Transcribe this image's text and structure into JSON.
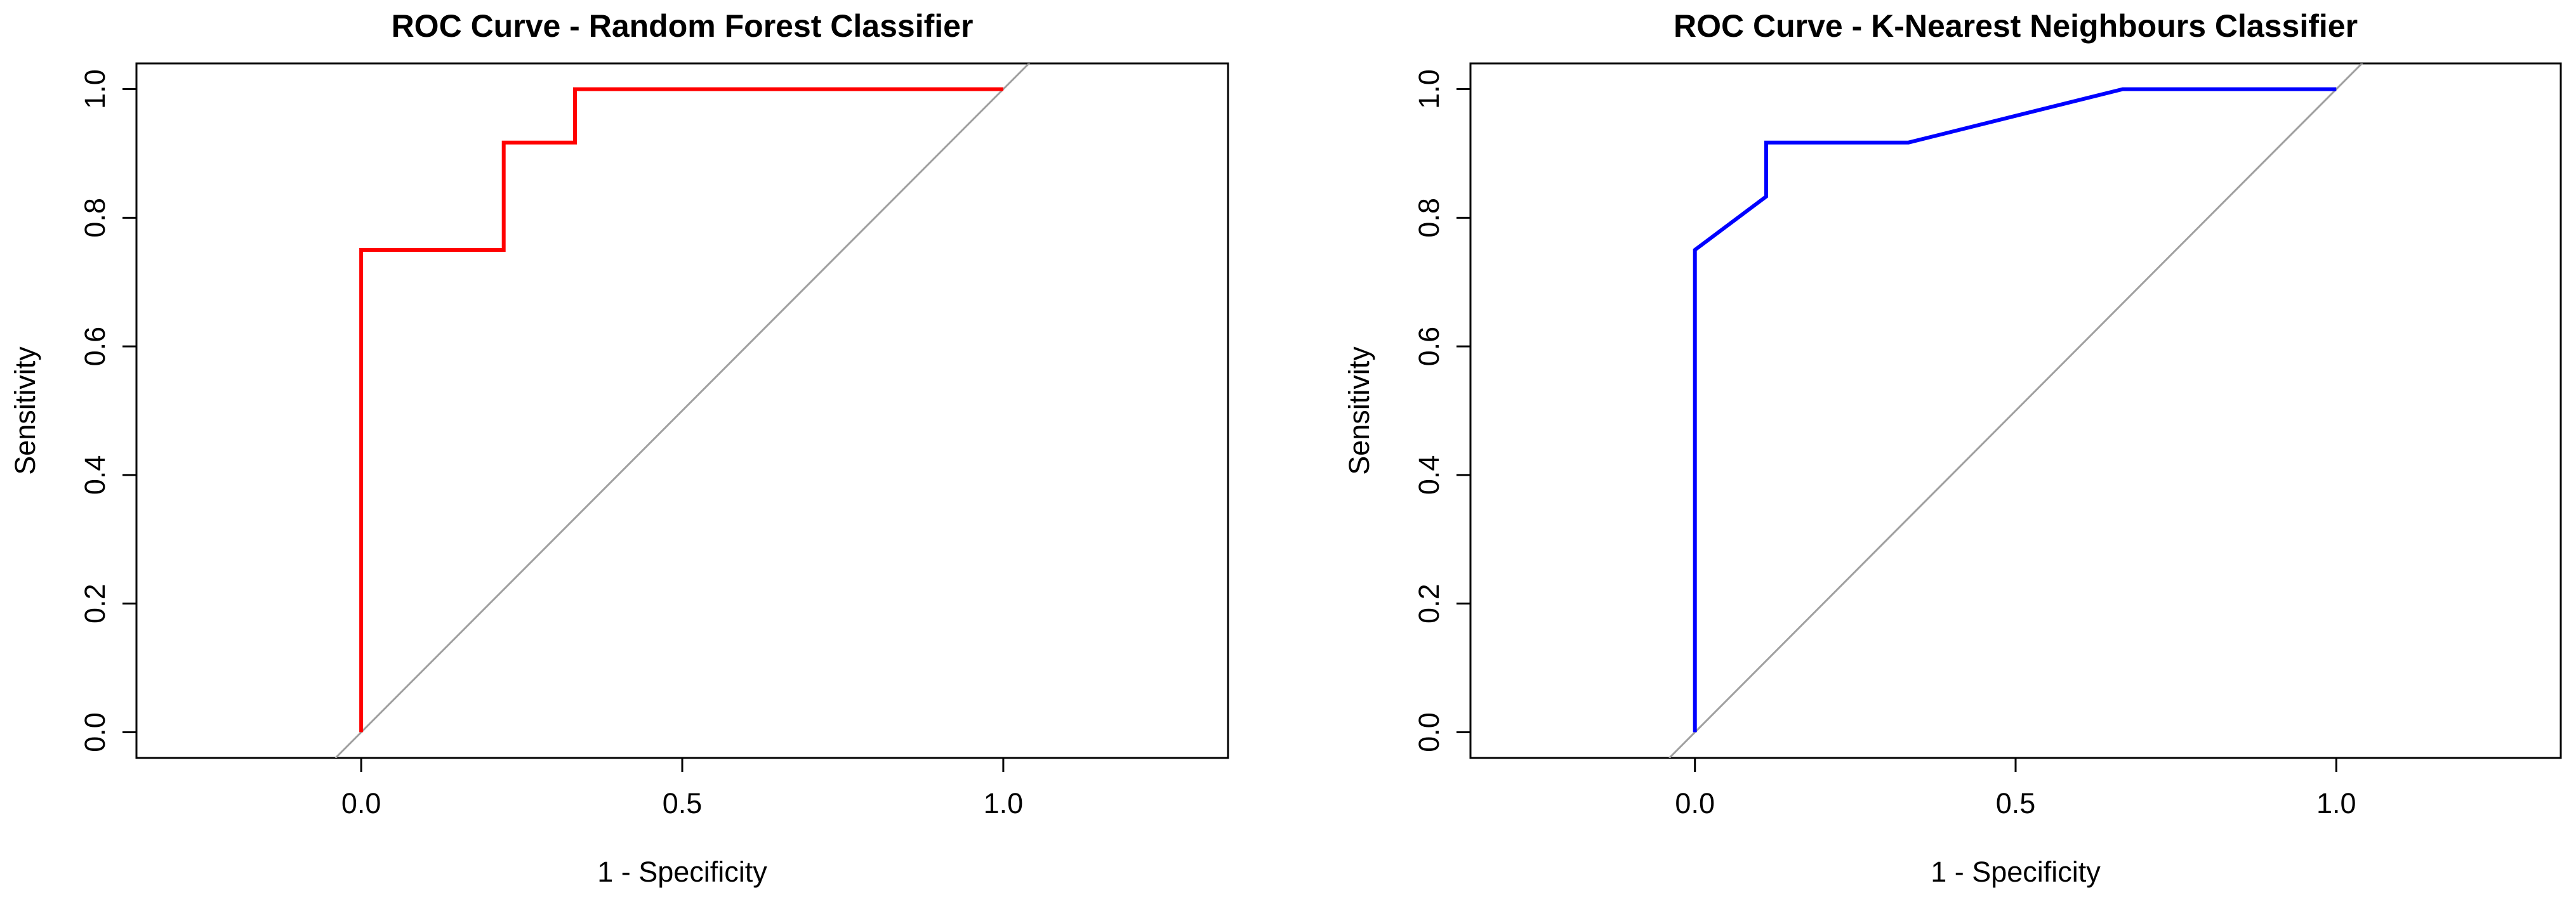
{
  "chart_data": [
    {
      "type": "line",
      "title": "ROC Curve - Random Forest Classifier",
      "xlabel": "1 - Specificity",
      "ylabel": "Sensitivity",
      "xlim": [
        -0.35,
        1.35
      ],
      "ylim": [
        -0.04,
        1.04
      ],
      "x_ticks": [
        "0.0",
        "0.5",
        "1.0"
      ],
      "y_ticks": [
        "0.0",
        "0.2",
        "0.4",
        "0.6",
        "0.8",
        "1.0"
      ],
      "reference_line": {
        "from": [
          0,
          0
        ],
        "to": [
          1,
          1
        ],
        "color": "#a0a0a0"
      },
      "grid": false,
      "legend": "none",
      "series": [
        {
          "color": "#ff0000",
          "x": [
            0.0,
            0.0,
            0.222,
            0.222,
            0.333,
            0.333,
            1.0
          ],
          "y": [
            0.0,
            0.75,
            0.75,
            0.917,
            0.917,
            1.0,
            1.0
          ]
        }
      ]
    },
    {
      "type": "line",
      "title": "ROC Curve - K-Nearest Neighbours Classifier",
      "xlabel": "1 - Specificity",
      "ylabel": "Sensitivity",
      "xlim": [
        -0.35,
        1.35
      ],
      "ylim": [
        -0.04,
        1.04
      ],
      "x_ticks": [
        "0.0",
        "0.5",
        "1.0"
      ],
      "y_ticks": [
        "0.0",
        "0.2",
        "0.4",
        "0.6",
        "0.8",
        "1.0"
      ],
      "reference_line": {
        "from": [
          0,
          0
        ],
        "to": [
          1,
          1
        ],
        "color": "#a0a0a0"
      },
      "grid": false,
      "legend": "none",
      "series": [
        {
          "color": "#0000ff",
          "x": [
            0.0,
            0.0,
            0.111,
            0.111,
            0.333,
            0.667,
            1.0
          ],
          "y": [
            0.0,
            0.75,
            0.833,
            0.917,
            0.917,
            1.0,
            1.0
          ]
        }
      ]
    }
  ]
}
